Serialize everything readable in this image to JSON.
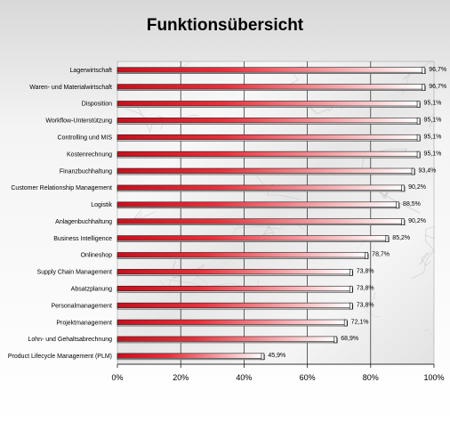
{
  "chart_data": {
    "type": "bar",
    "orientation": "horizontal",
    "title": "Funktionsübersicht",
    "categories": [
      "Lagerwirtschaft",
      "Waren- und Materialwirtschaft",
      "Disposition",
      "Workflow-Unterstützung",
      "Controlling und MIS",
      "Kostenrechnung",
      "Finanzbuchhaltung",
      "Customer Relationship Management",
      "Logistik",
      "Anlagenbuchhaltung",
      "Business Intelligence",
      "Onlineshop",
      "Supply Chain Management",
      "Absatzplanung",
      "Personalmanagement",
      "Projektmanagement",
      "Lohn- und Gehaltsabrechnung",
      "Product Lifecycle Management (PLM)"
    ],
    "values": [
      96.7,
      96.7,
      95.1,
      95.1,
      95.1,
      95.1,
      93.4,
      90.2,
      88.5,
      90.2,
      85.2,
      78.7,
      73.8,
      73.8,
      73.8,
      72.1,
      68.9,
      45.9
    ],
    "value_labels": [
      "96,7%",
      "96,7%",
      "95,1%",
      "95,1%",
      "95,1%",
      "95,1%",
      "93,4%",
      "90,2%",
      "88,5%",
      "90,2%",
      "85,2%",
      "78,7%",
      "73,8%",
      "73,8%",
      "73,8%",
      "72,1%",
      "68,9%",
      "45,9%"
    ],
    "x_ticks": [
      "0%",
      "20%",
      "40%",
      "60%",
      "80%",
      "100%"
    ],
    "xlim": [
      0,
      100
    ],
    "grid": true,
    "bar_color": "#d8202a",
    "bar_shadow_color": "#ffffff"
  }
}
